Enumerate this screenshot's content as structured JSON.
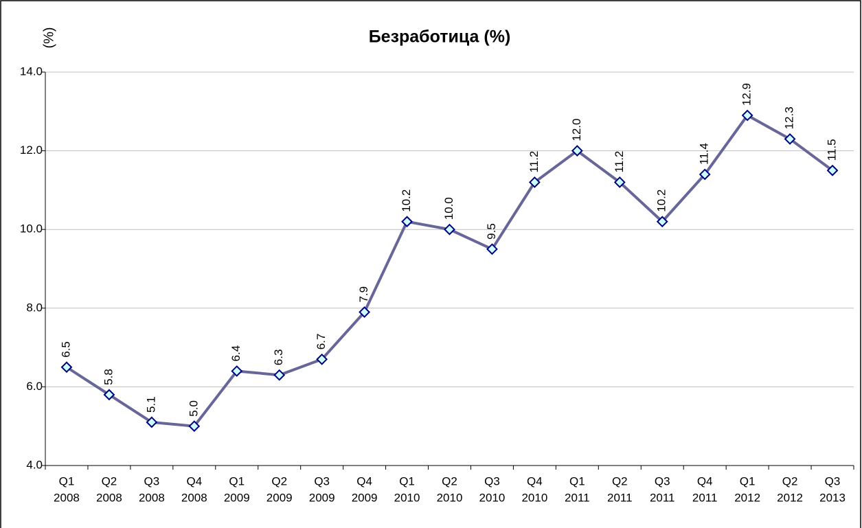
{
  "chart_data": {
    "type": "line",
    "title": "Безработица (%)",
    "y_label": "(%)",
    "categories": [
      [
        "Q1",
        "2008"
      ],
      [
        "Q2",
        "2008"
      ],
      [
        "Q3",
        "2008"
      ],
      [
        "Q4",
        "2008"
      ],
      [
        "Q1",
        "2009"
      ],
      [
        "Q2",
        "2009"
      ],
      [
        "Q3",
        "2009"
      ],
      [
        "Q4",
        "2009"
      ],
      [
        "Q1",
        "2010"
      ],
      [
        "Q2",
        "2010"
      ],
      [
        "Q3",
        "2010"
      ],
      [
        "Q4",
        "2010"
      ],
      [
        "Q1",
        "2011"
      ],
      [
        "Q2",
        "2011"
      ],
      [
        "Q3",
        "2011"
      ],
      [
        "Q4",
        "2011"
      ],
      [
        "Q1",
        "2012"
      ],
      [
        "Q2",
        "2012"
      ],
      [
        "Q3",
        "2013"
      ]
    ],
    "values": [
      6.5,
      5.8,
      5.1,
      5.0,
      6.4,
      6.3,
      6.7,
      7.9,
      10.2,
      10.0,
      9.5,
      11.2,
      12.0,
      11.2,
      10.2,
      11.4,
      12.9,
      12.3,
      11.5
    ],
    "value_labels": [
      "6.5",
      "5.8",
      "5.1",
      "5.0",
      "6.4",
      "6.3",
      "6.7",
      "7.9",
      "10.2",
      "10.0",
      "9.5",
      "11.2",
      "12.0",
      "11.2",
      "10.2",
      "11.4",
      "12.9",
      "12.3",
      "11.5"
    ],
    "color": "#666699",
    "marker_fill": "#ccffff",
    "marker_stroke": "#000080",
    "ylim": [
      4,
      14
    ],
    "yticks": [
      {
        "value": 4,
        "label": "4.0"
      },
      {
        "value": 6,
        "label": "6.0"
      },
      {
        "value": 8,
        "label": "8.0"
      },
      {
        "value": 10,
        "label": "10.0"
      },
      {
        "value": 12,
        "label": "12.0"
      },
      {
        "value": 14,
        "label": "14.0"
      }
    ],
    "grid": true
  }
}
